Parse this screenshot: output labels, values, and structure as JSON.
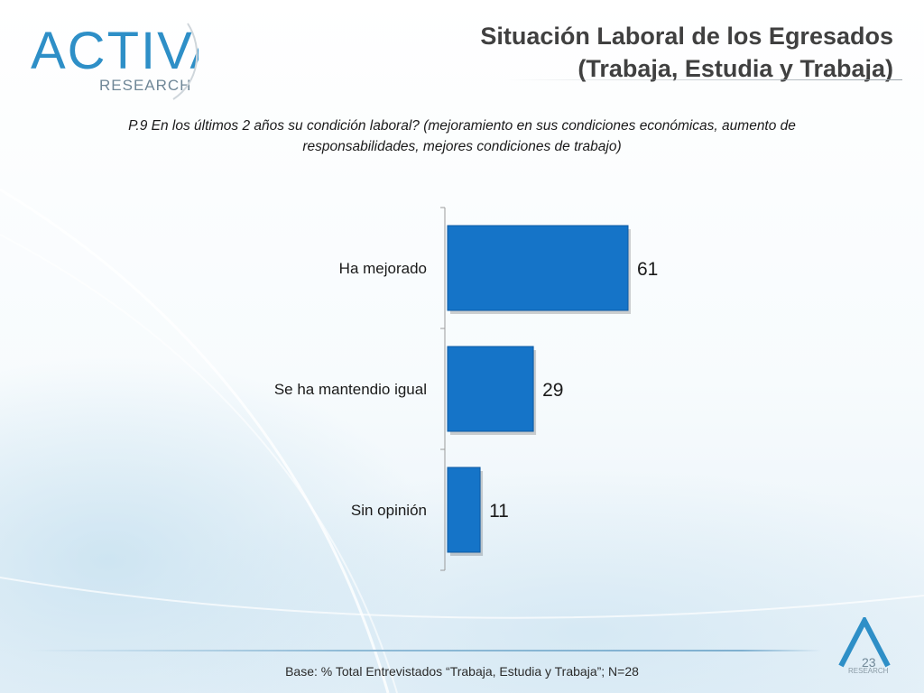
{
  "brand": {
    "logo_text": "ACTIVA",
    "logo_subtext": "RESEARCH",
    "page_number": "23",
    "mini_logo_text": "RESEARCH"
  },
  "header": {
    "title_line1": "Situación Laboral de los Egresados",
    "title_line2": "(Trabaja, Estudia y Trabaja)"
  },
  "question": {
    "line1": "P.9  En los últimos 2 años su condición laboral? (mejoramiento en sus condiciones económicas, aumento de",
    "line2": "responsabilidades, mejores condiciones de trabajo)"
  },
  "footer": {
    "base_note": "Base: % Total Entrevistados “Trabaja, Estudia y Trabaja”; N=28"
  },
  "colors": {
    "bar": "#1574c8",
    "bar_edge": "#0d5aa3",
    "axis": "#9a9a9a",
    "text": "#1a1a1a",
    "accent": "#2e8fc7"
  },
  "chart_data": {
    "type": "bar",
    "orientation": "horizontal",
    "categories": [
      "Ha mejorado",
      "Se ha mantendio igual",
      "Sin opinión"
    ],
    "values": [
      61,
      29,
      11
    ],
    "value_labels": [
      "61",
      "29",
      "11"
    ],
    "xlim": [
      0,
      100
    ],
    "title": "",
    "xlabel": "",
    "ylabel": "",
    "grid": false
  }
}
